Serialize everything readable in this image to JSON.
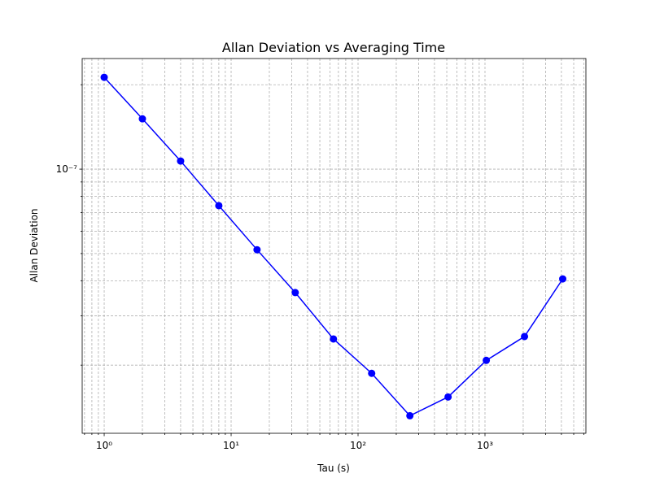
{
  "chart_data": {
    "type": "line",
    "title": "Allan Deviation vs Averaging Time",
    "xlabel": "Tau (s)",
    "ylabel": "Allan Deviation",
    "xscale": "log",
    "yscale": "log",
    "grid": true,
    "x": [
      1,
      2,
      4,
      8,
      16,
      32,
      64,
      128,
      256,
      512,
      1024,
      2048,
      4096
    ],
    "series": [
      {
        "name": "Allan Deviation",
        "color": "#0000ff",
        "values": [
          2.126e-07,
          1.512e-07,
          1.069e-07,
          7.41e-08,
          5.16e-08,
          3.63e-08,
          2.48e-08,
          1.87e-08,
          1.32e-08,
          1.54e-08,
          2.08e-08,
          2.53e-08,
          4.06e-08
        ]
      }
    ],
    "xlim": [
      0.671,
      6237
    ],
    "ylim": [
      1.143e-08,
      2.48e-07
    ],
    "xticks": [
      {
        "value": 1,
        "label": "10⁰"
      },
      {
        "value": 10,
        "label": "10¹"
      },
      {
        "value": 100,
        "label": "10²"
      },
      {
        "value": 1000,
        "label": "10³"
      }
    ],
    "xminor_ticks": [
      0.7,
      0.8,
      0.9,
      2,
      3,
      4,
      5,
      6,
      7,
      8,
      9,
      20,
      30,
      40,
      50,
      60,
      70,
      80,
      90,
      200,
      300,
      400,
      500,
      600,
      700,
      800,
      900,
      2000,
      3000,
      4000,
      5000,
      6000
    ],
    "yticks": [
      {
        "value": 1e-07,
        "label": "10⁻⁷"
      }
    ],
    "yminor_ticks": [
      2e-08,
      3e-08,
      4e-08,
      5e-08,
      6e-08,
      7e-08,
      8e-08,
      9e-08,
      2e-07
    ]
  }
}
